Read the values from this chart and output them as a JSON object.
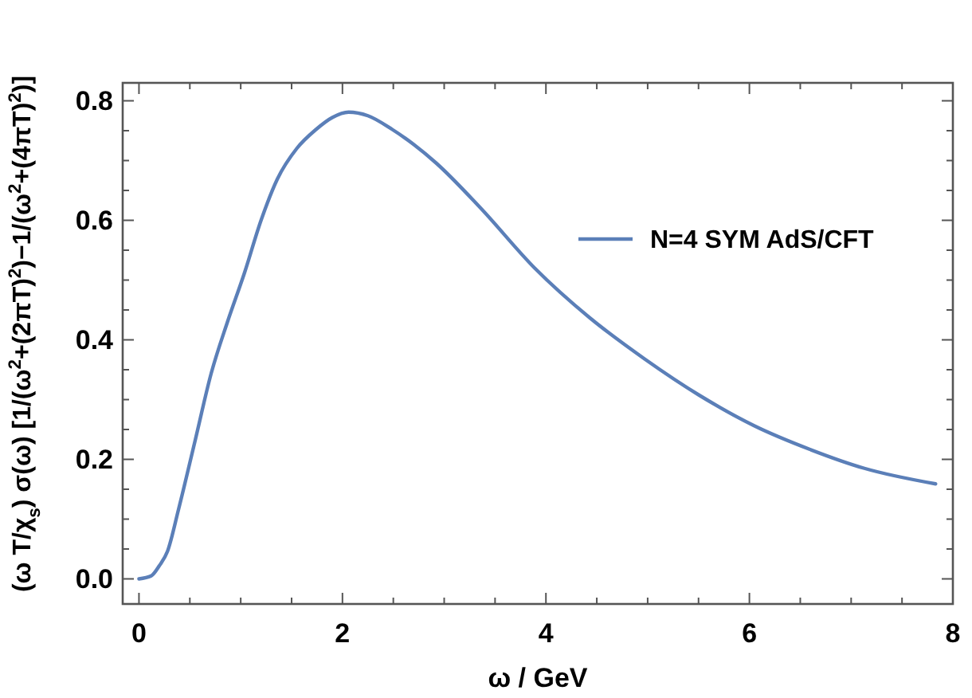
{
  "chart_data": {
    "type": "line",
    "xlabel": "ω / GeV",
    "ylabel": "(ω T/χ$_{s}$) σ(ω) [1/(ω$^{2}$+(2πT)$^{2}$)−1/(ω$^{2}$+(4πT)$^{2}$)]",
    "x": [
      0,
      0.12,
      0.2,
      0.28,
      0.39,
      0.55,
      0.71,
      0.87,
      1.035,
      1.2,
      1.36,
      1.55,
      1.74,
      1.9,
      2.06,
      2.25,
      2.49,
      2.7,
      2.92,
      3.35,
      3.89,
      4.43,
      4.97,
      5.51,
      6.05,
      6.59,
      7.13,
      7.83
    ],
    "series": [
      {
        "name": "N=4 SYM AdS/CFT",
        "color": "#5b7fb8",
        "values": [
          0,
          0.005,
          0.022,
          0.046,
          0.117,
          0.23,
          0.344,
          0.43,
          0.511,
          0.6,
          0.669,
          0.72,
          0.752,
          0.772,
          0.781,
          0.775,
          0.752,
          0.727,
          0.696,
          0.622,
          0.52,
          0.437,
          0.368,
          0.307,
          0.256,
          0.217,
          0.185,
          0.159
        ]
      }
    ],
    "xlim": [
      -0.16,
      8
    ],
    "ylim": [
      -0.042,
      0.83
    ],
    "xticks": [
      0,
      {
        "value": 0.5,
        "label": null
      },
      {
        "value": 1,
        "label": null
      },
      {
        "value": 1.5,
        "label": null
      },
      2,
      {
        "value": 2.5,
        "label": null
      },
      {
        "value": 3,
        "label": null
      },
      {
        "value": 3.5,
        "label": null
      },
      4,
      {
        "value": 4.5,
        "label": null
      },
      {
        "value": 5,
        "label": null
      },
      {
        "value": 5.5,
        "label": null
      },
      6,
      {
        "value": 6.5,
        "label": null
      },
      {
        "value": 7,
        "label": null
      },
      {
        "value": 7.5,
        "label": null
      },
      8
    ],
    "yticks": [
      {
        "value": 0,
        "label": "0.0"
      },
      {
        "value": 0.05,
        "label": null
      },
      {
        "value": 0.1,
        "label": null
      },
      {
        "value": 0.15,
        "label": null
      },
      {
        "value": 0.2,
        "label": "0.2"
      },
      {
        "value": 0.25,
        "label": null
      },
      {
        "value": 0.3,
        "label": null
      },
      {
        "value": 0.35,
        "label": null
      },
      {
        "value": 0.4,
        "label": "0.4"
      },
      {
        "value": 0.45,
        "label": null
      },
      {
        "value": 0.5,
        "label": null
      },
      {
        "value": 0.55,
        "label": null
      },
      {
        "value": 0.6,
        "label": "0.6"
      },
      {
        "value": 0.65,
        "label": null
      },
      {
        "value": 0.7,
        "label": null
      },
      {
        "value": 0.75,
        "label": null
      },
      {
        "value": 0.8,
        "label": "0.8"
      }
    ],
    "grid": false,
    "legend": "right",
    "marker": "none",
    "line_style": "solid"
  }
}
